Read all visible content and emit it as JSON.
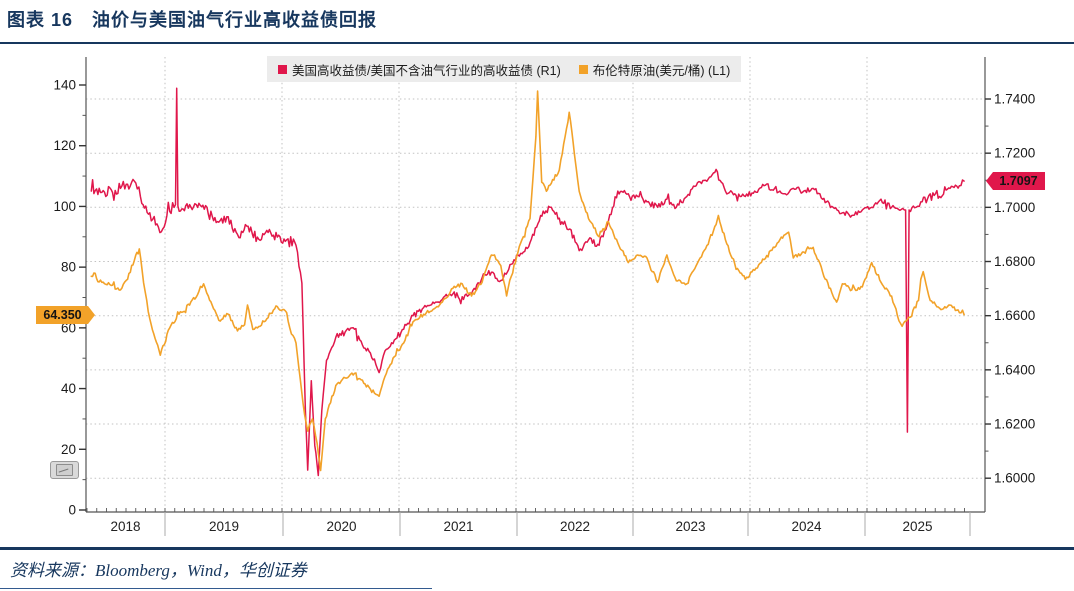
{
  "page": {
    "title": "图表 16　油价与美国油气行业高收益债回报",
    "source_note": "资料来源：Bloomberg，Wind，华创证券",
    "theme_color": "#17375E"
  },
  "chart_data": {
    "type": "line",
    "title": "油价与美国油气行业高收益债回报",
    "legend_position": "top",
    "grid": "dotted",
    "x_axis": {
      "year_labels": [
        "2018",
        "2019",
        "2020",
        "2021",
        "2022",
        "2023",
        "2024",
        "2025"
      ],
      "start": 2018.33,
      "end": 2025.83
    },
    "left_axis": {
      "min": 0,
      "max": 140,
      "step": 20
    },
    "right_axis": {
      "min": 1.6,
      "max": 1.74,
      "step": 0.02,
      "decimals": 4
    },
    "series": [
      {
        "name": "美国高收益债/美国不含油气行业的高收益债 (R1)",
        "axis": "right",
        "color": "#E0174B",
        "points": [
          [
            2018.37,
            1.706
          ],
          [
            2018.46,
            1.7055
          ],
          [
            2018.54,
            1.7065
          ],
          [
            2018.62,
            1.707
          ],
          [
            2018.68,
            1.7085
          ],
          [
            2018.75,
            1.709
          ],
          [
            2018.79,
            1.704
          ],
          [
            2018.87,
            1.698
          ],
          [
            2018.92,
            1.6935
          ],
          [
            2018.98,
            1.692
          ],
          [
            2019.04,
            1.6985
          ],
          [
            2019.09,
            1.701
          ],
          [
            2019.1,
            1.744
          ],
          [
            2019.11,
            1.7005
          ],
          [
            2019.21,
            1.701
          ],
          [
            2019.29,
            1.7015
          ],
          [
            2019.37,
            1.6975
          ],
          [
            2019.46,
            1.6945
          ],
          [
            2019.54,
            1.6965
          ],
          [
            2019.62,
            1.69
          ],
          [
            2019.71,
            1.693
          ],
          [
            2019.79,
            1.689
          ],
          [
            2019.87,
            1.6915
          ],
          [
            2019.96,
            1.689
          ],
          [
            2020.04,
            1.688
          ],
          [
            2020.12,
            1.686
          ],
          [
            2020.17,
            1.672
          ],
          [
            2020.2,
            1.625
          ],
          [
            2020.22,
            1.603
          ],
          [
            2020.25,
            1.636
          ],
          [
            2020.28,
            1.612
          ],
          [
            2020.31,
            1.601
          ],
          [
            2020.34,
            1.625
          ],
          [
            2020.38,
            1.6435
          ],
          [
            2020.46,
            1.652
          ],
          [
            2020.54,
            1.654
          ],
          [
            2020.62,
            1.655
          ],
          [
            2020.71,
            1.648
          ],
          [
            2020.79,
            1.644
          ],
          [
            2020.83,
            1.639
          ],
          [
            2020.88,
            1.647
          ],
          [
            2020.96,
            1.651
          ],
          [
            2021.04,
            1.655
          ],
          [
            2021.12,
            1.66
          ],
          [
            2021.21,
            1.663
          ],
          [
            2021.29,
            1.665
          ],
          [
            2021.37,
            1.666
          ],
          [
            2021.46,
            1.668
          ],
          [
            2021.54,
            1.667
          ],
          [
            2021.62,
            1.668
          ],
          [
            2021.71,
            1.674
          ],
          [
            2021.79,
            1.676
          ],
          [
            2021.87,
            1.673
          ],
          [
            2021.96,
            1.679
          ],
          [
            2022.04,
            1.683
          ],
          [
            2022.12,
            1.687
          ],
          [
            2022.21,
            1.697
          ],
          [
            2022.29,
            1.7
          ],
          [
            2022.37,
            1.696
          ],
          [
            2022.46,
            1.692
          ],
          [
            2022.54,
            1.684
          ],
          [
            2022.62,
            1.688
          ],
          [
            2022.71,
            1.686
          ],
          [
            2022.79,
            1.695
          ],
          [
            2022.87,
            1.706
          ],
          [
            2022.96,
            1.705
          ],
          [
            2023.04,
            1.704
          ],
          [
            2023.12,
            1.702
          ],
          [
            2023.21,
            1.7
          ],
          [
            2023.29,
            1.703
          ],
          [
            2023.37,
            1.7
          ],
          [
            2023.46,
            1.704
          ],
          [
            2023.54,
            1.708
          ],
          [
            2023.62,
            1.71
          ],
          [
            2023.71,
            1.714
          ],
          [
            2023.79,
            1.706
          ],
          [
            2023.87,
            1.705
          ],
          [
            2023.96,
            1.704
          ],
          [
            2024.04,
            1.706
          ],
          [
            2024.12,
            1.708
          ],
          [
            2024.21,
            1.707
          ],
          [
            2024.29,
            1.705
          ],
          [
            2024.37,
            1.707
          ],
          [
            2024.46,
            1.706
          ],
          [
            2024.54,
            1.707
          ],
          [
            2024.62,
            1.703
          ],
          [
            2024.71,
            1.7
          ],
          [
            2024.79,
            1.698
          ],
          [
            2024.87,
            1.697
          ],
          [
            2024.96,
            1.699
          ],
          [
            2025.04,
            1.7
          ],
          [
            2025.12,
            1.703
          ],
          [
            2025.21,
            1.7
          ],
          [
            2025.33,
            1.699
          ],
          [
            2025.345,
            1.617
          ],
          [
            2025.36,
            1.699
          ],
          [
            2025.42,
            1.7
          ],
          [
            2025.46,
            1.702
          ],
          [
            2025.54,
            1.705
          ],
          [
            2025.62,
            1.704
          ],
          [
            2025.71,
            1.707
          ],
          [
            2025.79,
            1.708
          ],
          [
            2025.83,
            1.7097
          ]
        ]
      },
      {
        "name": "布伦特原油(美元/桶) (L1)",
        "axis": "left",
        "color": "#F2A229",
        "points": [
          [
            2018.37,
            77
          ],
          [
            2018.46,
            75
          ],
          [
            2018.54,
            74
          ],
          [
            2018.62,
            72.5
          ],
          [
            2018.68,
            76
          ],
          [
            2018.75,
            84
          ],
          [
            2018.78,
            86
          ],
          [
            2018.83,
            72
          ],
          [
            2018.87,
            63
          ],
          [
            2018.96,
            51
          ],
          [
            2019.04,
            60
          ],
          [
            2019.12,
            64.5
          ],
          [
            2019.21,
            67.5
          ],
          [
            2019.29,
            72
          ],
          [
            2019.33,
            74.5
          ],
          [
            2019.37,
            70.5
          ],
          [
            2019.46,
            62.5
          ],
          [
            2019.54,
            64.5
          ],
          [
            2019.62,
            59
          ],
          [
            2019.68,
            61
          ],
          [
            2019.705,
            67.5
          ],
          [
            2019.75,
            59.5
          ],
          [
            2019.79,
            60
          ],
          [
            2019.87,
            63
          ],
          [
            2019.96,
            67
          ],
          [
            2020.04,
            65
          ],
          [
            2020.08,
            58
          ],
          [
            2020.12,
            55
          ],
          [
            2020.18,
            35
          ],
          [
            2020.22,
            26
          ],
          [
            2020.26,
            30
          ],
          [
            2020.3,
            22
          ],
          [
            2020.33,
            13
          ],
          [
            2020.37,
            30
          ],
          [
            2020.46,
            41
          ],
          [
            2020.54,
            43.5
          ],
          [
            2020.62,
            45
          ],
          [
            2020.71,
            41.5
          ],
          [
            2020.79,
            38.5
          ],
          [
            2020.83,
            37.5
          ],
          [
            2020.88,
            44
          ],
          [
            2020.96,
            50.5
          ],
          [
            2021.04,
            55
          ],
          [
            2021.12,
            62
          ],
          [
            2021.21,
            64.5
          ],
          [
            2021.29,
            66
          ],
          [
            2021.37,
            68.5
          ],
          [
            2021.46,
            73
          ],
          [
            2021.54,
            74.5
          ],
          [
            2021.62,
            70.5
          ],
          [
            2021.71,
            75
          ],
          [
            2021.79,
            84
          ],
          [
            2021.83,
            82.5
          ],
          [
            2021.87,
            80.5
          ],
          [
            2021.92,
            70.5
          ],
          [
            2021.96,
            77
          ],
          [
            2022.04,
            88
          ],
          [
            2022.12,
            96
          ],
          [
            2022.17,
            123
          ],
          [
            2022.185,
            138
          ],
          [
            2022.22,
            108
          ],
          [
            2022.26,
            105
          ],
          [
            2022.29,
            107
          ],
          [
            2022.37,
            112
          ],
          [
            2022.42,
            123
          ],
          [
            2022.455,
            131
          ],
          [
            2022.5,
            117
          ],
          [
            2022.54,
            105
          ],
          [
            2022.62,
            96
          ],
          [
            2022.71,
            90
          ],
          [
            2022.79,
            95
          ],
          [
            2022.87,
            88
          ],
          [
            2022.96,
            81.5
          ],
          [
            2023.04,
            84
          ],
          [
            2023.12,
            83
          ],
          [
            2023.21,
            75
          ],
          [
            2023.29,
            84
          ],
          [
            2023.37,
            75.5
          ],
          [
            2023.46,
            74.5
          ],
          [
            2023.54,
            80.5
          ],
          [
            2023.62,
            86
          ],
          [
            2023.71,
            94
          ],
          [
            2023.73,
            97
          ],
          [
            2023.79,
            89
          ],
          [
            2023.87,
            81
          ],
          [
            2023.96,
            76
          ],
          [
            2024.04,
            79
          ],
          [
            2024.12,
            82.5
          ],
          [
            2024.21,
            86.5
          ],
          [
            2024.29,
            90.5
          ],
          [
            2024.33,
            91.5
          ],
          [
            2024.37,
            83
          ],
          [
            2024.46,
            85
          ],
          [
            2024.54,
            86.5
          ],
          [
            2024.62,
            78.5
          ],
          [
            2024.71,
            70.5
          ],
          [
            2024.74,
            68.5
          ],
          [
            2024.79,
            74.5
          ],
          [
            2024.87,
            72.5
          ],
          [
            2024.96,
            73.5
          ],
          [
            2025.04,
            81.5
          ],
          [
            2025.12,
            75
          ],
          [
            2025.21,
            70.5
          ],
          [
            2025.26,
            64
          ],
          [
            2025.3,
            60.5
          ],
          [
            2025.37,
            63.5
          ],
          [
            2025.44,
            69
          ],
          [
            2025.46,
            76
          ],
          [
            2025.48,
            78.5
          ],
          [
            2025.54,
            69
          ],
          [
            2025.62,
            66.5
          ],
          [
            2025.71,
            67.5
          ],
          [
            2025.79,
            65
          ],
          [
            2025.83,
            64.35
          ]
        ]
      }
    ],
    "last_value_labels": {
      "left": {
        "text": "64.350",
        "value": 64.35
      },
      "right": {
        "text": "1.7097",
        "value": 1.7097
      }
    }
  }
}
